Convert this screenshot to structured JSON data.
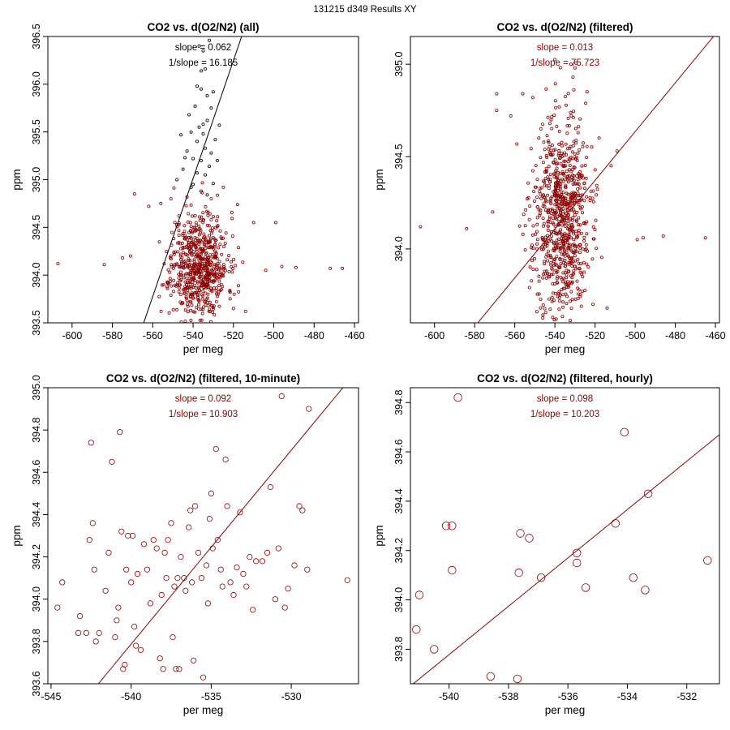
{
  "page_title": "131215   d349   Results XY",
  "colors": {
    "red": "#8b0000",
    "black": "#000000"
  },
  "chart_data": [
    {
      "type": "scatter",
      "title": "CO2 vs. d(O2/N2) (all)",
      "xlabel": "per meg",
      "ylabel": "ppm",
      "xlim": [
        -612,
        -458
      ],
      "ylim": [
        393.5,
        396.5
      ],
      "xticks": [
        -600,
        -580,
        -560,
        -540,
        -520,
        -500,
        -480,
        -460
      ],
      "yticks": [
        393.5,
        394.0,
        394.5,
        395.0,
        395.5,
        396.0,
        396.5
      ],
      "ytick_labels": [
        "393.5",
        "394.0",
        "394.5",
        "395.0",
        "395.5",
        "396.0",
        "396.5"
      ],
      "slope_text": "slope = 0.062",
      "inv_slope_text": "1/slope = 16.185",
      "annotation_color": "black",
      "fit": {
        "slope": 0.0618,
        "x0": -536,
        "y0": 395.26,
        "color": "black"
      },
      "marker_radius": 1.6,
      "series": [
        {
          "name": "outliers",
          "color": "black",
          "points": [
            [
              -537,
              396.4
            ],
            [
              -532,
              396.46
            ],
            [
              -535,
              396.35
            ],
            [
              -536,
              396.14
            ],
            [
              -534,
              396.16
            ],
            [
              -538,
              395.98
            ],
            [
              -530,
              395.92
            ],
            [
              -536,
              395.95
            ],
            [
              -531,
              395.75
            ],
            [
              -542,
              395.68
            ],
            [
              -533,
              395.62
            ],
            [
              -527,
              395.57
            ],
            [
              -541,
              395.5
            ],
            [
              -535,
              395.48
            ],
            [
              -529,
              395.42
            ],
            [
              -546,
              395.47
            ],
            [
              -538,
              395.4
            ],
            [
              -534,
              395.33
            ],
            [
              -531,
              395.28
            ],
            [
              -543,
              395.3
            ],
            [
              -540,
              395.22
            ],
            [
              -536,
              395.2
            ],
            [
              -532,
              395.14
            ],
            [
              -545,
              395.11
            ],
            [
              -538,
              395.07
            ],
            [
              -534,
              395.05
            ],
            [
              -548,
              395.0
            ],
            [
              -530,
              394.96
            ],
            [
              -541,
              394.92
            ],
            [
              -536,
              394.88
            ],
            [
              -533,
              394.84
            ],
            [
              -528,
              395.2
            ],
            [
              -535,
              395.58
            ],
            [
              -539,
              395.77
            ],
            [
              -533,
              395.88
            ],
            [
              -537,
              395.55
            ],
            [
              -544,
              395.23
            ],
            [
              -540,
              394.95
            ]
          ]
        },
        {
          "name": "filtered",
          "color": "red",
          "n": 650,
          "seed": 11,
          "center": [
            -537,
            394.1
          ],
          "spread": [
            7,
            0.28
          ],
          "extra": [
            [
              -607,
              394.12
            ],
            [
              -584,
              394.11
            ],
            [
              -571,
              394.2
            ],
            [
              -569,
              394.85
            ],
            [
              -575,
              394.18
            ],
            [
              -562,
              394.72
            ],
            [
              -556,
              394.75
            ],
            [
              -551,
              394.8
            ],
            [
              -547,
              394.62
            ],
            [
              -551,
              394.2
            ],
            [
              -518,
              394.74
            ],
            [
              -510,
              394.55
            ],
            [
              -504,
              394.05
            ],
            [
              -499,
              394.55
            ],
            [
              -496,
              394.09
            ],
            [
              -489,
              394.08
            ],
            [
              -472,
              394.07
            ],
            [
              -466,
              394.07
            ],
            [
              -520,
              393.65
            ],
            [
              -514,
              393.62
            ],
            [
              -519,
              394.1
            ],
            [
              -525,
              394.92
            ],
            [
              -531,
              394.8
            ]
          ]
        }
      ]
    },
    {
      "type": "scatter",
      "title": "CO2 vs. d(O2/N2) (filtered)",
      "xlabel": "per meg",
      "ylabel": "ppm",
      "xlim": [
        -612,
        -458
      ],
      "ylim": [
        393.6,
        395.15
      ],
      "xticks": [
        -600,
        -580,
        -560,
        -540,
        -520,
        -500,
        -480,
        -460
      ],
      "yticks": [
        394.0,
        394.5,
        395.0
      ],
      "ytick_labels": [
        "394.0",
        "394.5",
        "395.0"
      ],
      "slope_text": "slope = 0.013",
      "inv_slope_text": "1/slope = 75.723",
      "annotation_color": "red",
      "fit": {
        "slope": 0.0132,
        "x0": -536,
        "y0": 394.16,
        "color": "red"
      },
      "marker_radius": 1.6,
      "series": [
        {
          "name": "filtered",
          "color": "red",
          "n": 800,
          "seed": 23,
          "center": [
            -537,
            394.15
          ],
          "spread": [
            7,
            0.27
          ],
          "extra": [
            [
              -607,
              394.12
            ],
            [
              -584,
              394.11
            ],
            [
              -571,
              394.2
            ],
            [
              -569,
              394.84
            ],
            [
              -569,
              394.75
            ],
            [
              -562,
              394.72
            ],
            [
              -556,
              394.84
            ],
            [
              -551,
              394.82
            ],
            [
              -547,
              394.65
            ],
            [
              -532,
              395.0
            ],
            [
              -530,
              394.98
            ],
            [
              -531,
              394.93
            ],
            [
              -518,
              394.6
            ],
            [
              -512,
              394.45
            ],
            [
              -509,
              394.53
            ],
            [
              -499,
              394.05
            ],
            [
              -496,
              394.06
            ],
            [
              -486,
              394.07
            ],
            [
              -465,
              394.06
            ],
            [
              -521,
              393.7
            ],
            [
              -514,
              393.68
            ],
            [
              -549,
              393.66
            ],
            [
              -548,
              394.6
            ]
          ]
        }
      ]
    },
    {
      "type": "scatter",
      "title": "CO2 vs. d(O2/N2) (filtered, 10-minute)",
      "xlabel": "per meg",
      "ylabel": "ppm",
      "xlim": [
        -545.2,
        -525.8
      ],
      "ylim": [
        393.6,
        395.0
      ],
      "xticks": [
        -545,
        -540,
        -535,
        -530
      ],
      "yticks": [
        393.6,
        393.8,
        394.0,
        394.2,
        394.4,
        394.6,
        394.8,
        395.0
      ],
      "ytick_labels": [
        "393.6",
        "393.8",
        "394.0",
        "394.2",
        "394.4",
        "394.6",
        "394.8",
        "395.0"
      ],
      "slope_text": "slope = 0.092",
      "inv_slope_text": "1/slope = 10.903",
      "annotation_color": "red",
      "fit": {
        "slope": 0.0917,
        "x0": -535.5,
        "y0": 394.2,
        "color": "red"
      },
      "marker_radius": 3.2,
      "series": [
        {
          "name": "10-minute",
          "color": "red",
          "points": [
            [
              -544.6,
              393.96
            ],
            [
              -544.3,
              394.08
            ],
            [
              -543.3,
              393.84
            ],
            [
              -543.2,
              393.92
            ],
            [
              -542.8,
              393.84
            ],
            [
              -542.6,
              394.28
            ],
            [
              -542.5,
              394.74
            ],
            [
              -542.4,
              394.36
            ],
            [
              -542.3,
              394.14
            ],
            [
              -542.2,
              393.8
            ],
            [
              -542.0,
              393.84
            ],
            [
              -541.6,
              394.04
            ],
            [
              -541.4,
              394.22
            ],
            [
              -541.2,
              394.65
            ],
            [
              -541.0,
              393.82
            ],
            [
              -540.9,
              393.9
            ],
            [
              -540.8,
              393.96
            ],
            [
              -540.7,
              394.79
            ],
            [
              -540.6,
              394.32
            ],
            [
              -540.5,
              393.67
            ],
            [
              -540.4,
              393.69
            ],
            [
              -540.3,
              394.14
            ],
            [
              -540.2,
              394.3
            ],
            [
              -540.0,
              394.08
            ],
            [
              -539.9,
              394.3
            ],
            [
              -539.8,
              393.87
            ],
            [
              -539.7,
              393.78
            ],
            [
              -539.6,
              394.12
            ],
            [
              -539.4,
              393.76
            ],
            [
              -539.2,
              394.26
            ],
            [
              -539.0,
              394.14
            ],
            [
              -538.8,
              393.98
            ],
            [
              -538.6,
              394.28
            ],
            [
              -538.4,
              394.24
            ],
            [
              -538.2,
              393.72
            ],
            [
              -538.1,
              394.02
            ],
            [
              -538.0,
              393.67
            ],
            [
              -537.9,
              394.22
            ],
            [
              -537.8,
              394.1
            ],
            [
              -537.7,
              394.28
            ],
            [
              -537.5,
              394.36
            ],
            [
              -537.4,
              393.82
            ],
            [
              -537.3,
              394.06
            ],
            [
              -537.2,
              393.67
            ],
            [
              -537.1,
              394.1
            ],
            [
              -537.0,
              393.67
            ],
            [
              -536.9,
              394.2
            ],
            [
              -536.7,
              394.1
            ],
            [
              -536.6,
              394.04
            ],
            [
              -536.4,
              394.34
            ],
            [
              -536.3,
              394.42
            ],
            [
              -536.2,
              394.08
            ],
            [
              -536.1,
              393.71
            ],
            [
              -536.0,
              394.44
            ],
            [
              -535.8,
              394.22
            ],
            [
              -535.6,
              394.1
            ],
            [
              -535.5,
              393.63
            ],
            [
              -535.3,
              394.16
            ],
            [
              -535.2,
              393.98
            ],
            [
              -535.1,
              394.38
            ],
            [
              -535.0,
              394.5
            ],
            [
              -534.9,
              394.24
            ],
            [
              -534.7,
              394.71
            ],
            [
              -534.6,
              394.28
            ],
            [
              -534.4,
              394.14
            ],
            [
              -534.3,
              394.06
            ],
            [
              -534.1,
              394.66
            ],
            [
              -534.0,
              394.44
            ],
            [
              -533.8,
              394.08
            ],
            [
              -533.6,
              394.02
            ],
            [
              -533.4,
              394.15
            ],
            [
              -533.2,
              394.41
            ],
            [
              -533.0,
              394.12
            ],
            [
              -532.8,
              394.06
            ],
            [
              -532.6,
              394.2
            ],
            [
              -532.4,
              393.95
            ],
            [
              -532.2,
              394.18
            ],
            [
              -531.8,
              394.18
            ],
            [
              -531.5,
              394.22
            ],
            [
              -531.3,
              394.53
            ],
            [
              -531.0,
              394.0
            ],
            [
              -530.8,
              394.24
            ],
            [
              -530.6,
              394.96
            ],
            [
              -530.4,
              393.96
            ],
            [
              -530.2,
              394.05
            ],
            [
              -529.8,
              394.16
            ],
            [
              -529.5,
              394.44
            ],
            [
              -529.3,
              394.42
            ],
            [
              -529.0,
              394.14
            ],
            [
              -528.9,
              394.9
            ],
            [
              -526.5,
              394.09
            ]
          ]
        }
      ]
    },
    {
      "type": "scatter",
      "title": "CO2 vs. d(O2/N2) (filtered, hourly)",
      "xlabel": "per meg",
      "ylabel": "ppm",
      "xlim": [
        -541.3,
        -530.9
      ],
      "ylim": [
        393.66,
        394.86
      ],
      "xticks": [
        -540,
        -538,
        -536,
        -534,
        -532
      ],
      "yticks": [
        393.8,
        394.0,
        394.2,
        394.4,
        394.6,
        394.8
      ],
      "ytick_labels": [
        "393.8",
        "394.0",
        "394.2",
        "394.4",
        "394.6",
        "394.8"
      ],
      "slope_text": "slope = 0.098",
      "inv_slope_text": "1/slope = 10.203",
      "annotation_color": "red",
      "fit": {
        "slope": 0.098,
        "x0": -536,
        "y0": 394.17,
        "color": "red"
      },
      "marker_radius": 4.8,
      "series": [
        {
          "name": "hourly",
          "color": "red",
          "points": [
            [
              -541.1,
              393.88
            ],
            [
              -541.0,
              394.02
            ],
            [
              -540.5,
              393.8
            ],
            [
              -540.1,
              394.3
            ],
            [
              -539.9,
              394.3
            ],
            [
              -539.9,
              394.12
            ],
            [
              -539.7,
              394.82
            ],
            [
              -538.6,
              393.69
            ],
            [
              -537.7,
              393.68
            ],
            [
              -537.65,
              394.11
            ],
            [
              -537.6,
              394.27
            ],
            [
              -537.3,
              394.25
            ],
            [
              -536.9,
              394.09
            ],
            [
              -535.7,
              394.19
            ],
            [
              -535.7,
              394.15
            ],
            [
              -535.4,
              394.05
            ],
            [
              -534.4,
              394.31
            ],
            [
              -534.1,
              394.68
            ],
            [
              -533.8,
              394.09
            ],
            [
              -533.4,
              394.04
            ],
            [
              -533.3,
              394.43
            ],
            [
              -531.3,
              394.16
            ]
          ]
        }
      ]
    }
  ]
}
